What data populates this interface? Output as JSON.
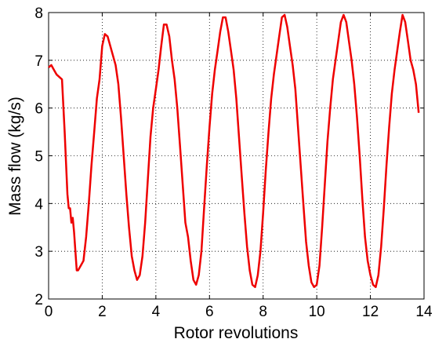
{
  "chart_data": {
    "type": "line",
    "x_label": "Rotor revolutions",
    "y_label": "Mass flow (kg/s)",
    "x": [
      0,
      0.1,
      0.2,
      0.3,
      0.5,
      0.6,
      0.7,
      0.75,
      0.8,
      0.85,
      0.9,
      0.95,
      1.0,
      1.05,
      1.1,
      1.2,
      1.3,
      1.4,
      1.5,
      1.6,
      1.7,
      1.8,
      1.9,
      2.0,
      2.1,
      2.2,
      2.3,
      2.5,
      2.6,
      2.7,
      2.8,
      2.9,
      3.0,
      3.1,
      3.2,
      3.3,
      3.4,
      3.5,
      3.6,
      3.7,
      3.8,
      3.9,
      4.0,
      4.1,
      4.2,
      4.3,
      4.4,
      4.5,
      4.6,
      4.7,
      4.8,
      4.9,
      5.0,
      5.1,
      5.2,
      5.3,
      5.4,
      5.5,
      5.6,
      5.7,
      5.8,
      5.9,
      6.0,
      6.1,
      6.2,
      6.3,
      6.4,
      6.5,
      6.6,
      6.7,
      6.8,
      6.9,
      7.0,
      7.1,
      7.2,
      7.3,
      7.4,
      7.5,
      7.6,
      7.7,
      7.8,
      7.9,
      8.0,
      8.1,
      8.2,
      8.3,
      8.4,
      8.5,
      8.6,
      8.7,
      8.8,
      8.9,
      9.0,
      9.1,
      9.2,
      9.3,
      9.4,
      9.5,
      9.6,
      9.7,
      9.8,
      9.9,
      10.0,
      10.1,
      10.2,
      10.3,
      10.4,
      10.5,
      10.6,
      10.7,
      10.8,
      10.9,
      11.0,
      11.1,
      11.2,
      11.3,
      11.4,
      11.5,
      11.6,
      11.7,
      11.8,
      11.9,
      12.0,
      12.1,
      12.2,
      12.3,
      12.4,
      12.5,
      12.6,
      12.7,
      12.8,
      12.9,
      13.0,
      13.1,
      13.2,
      13.3,
      13.4,
      13.5,
      13.6,
      13.7,
      13.8
    ],
    "series": [
      {
        "color": "#ee0000",
        "values": [
          6.85,
          6.9,
          6.8,
          6.7,
          6.6,
          5.5,
          4.2,
          3.9,
          3.9,
          3.6,
          3.7,
          3.4,
          3.0,
          2.6,
          2.6,
          2.7,
          2.8,
          3.3,
          4.0,
          4.8,
          5.5,
          6.2,
          6.6,
          7.3,
          7.55,
          7.5,
          7.3,
          6.9,
          6.5,
          5.8,
          5.0,
          4.2,
          3.5,
          2.9,
          2.6,
          2.4,
          2.5,
          2.9,
          3.6,
          4.5,
          5.4,
          6.0,
          6.4,
          6.8,
          7.3,
          7.75,
          7.75,
          7.5,
          7.0,
          6.6,
          6.0,
          5.2,
          4.4,
          3.6,
          3.3,
          2.8,
          2.4,
          2.3,
          2.5,
          3.0,
          3.9,
          4.8,
          5.6,
          6.3,
          6.8,
          7.2,
          7.6,
          7.9,
          7.9,
          7.6,
          7.2,
          6.8,
          6.2,
          5.4,
          4.6,
          3.8,
          3.1,
          2.6,
          2.3,
          2.25,
          2.5,
          3.0,
          3.8,
          4.7,
          5.5,
          6.2,
          6.7,
          7.1,
          7.5,
          7.9,
          7.95,
          7.7,
          7.3,
          6.9,
          6.4,
          5.6,
          4.8,
          4.0,
          3.2,
          2.7,
          2.35,
          2.25,
          2.3,
          2.7,
          3.5,
          4.4,
          5.3,
          6.0,
          6.6,
          7.0,
          7.4,
          7.8,
          7.95,
          7.8,
          7.4,
          7.0,
          6.5,
          5.8,
          5.0,
          4.1,
          3.3,
          2.8,
          2.5,
          2.3,
          2.25,
          2.5,
          3.1,
          3.9,
          4.8,
          5.6,
          6.3,
          6.8,
          7.2,
          7.6,
          7.95,
          7.8,
          7.4,
          7.0,
          6.8,
          6.5,
          5.9
        ]
      }
    ],
    "xlim": [
      0,
      14
    ],
    "xticks": [
      0,
      2,
      4,
      6,
      8,
      10,
      12,
      14
    ],
    "ylim": [
      2,
      8
    ],
    "yticks": [
      2,
      3,
      4,
      5,
      6,
      7,
      8
    ],
    "grid": true
  }
}
